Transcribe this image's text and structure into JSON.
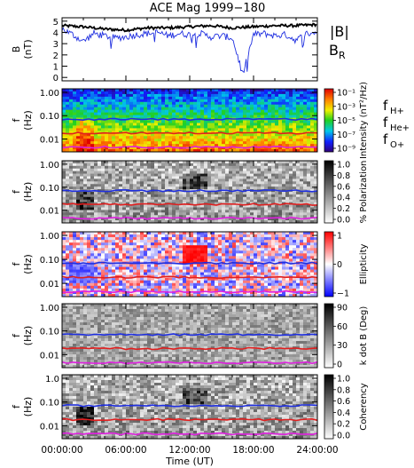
{
  "title": "ACE Mag 1999−180",
  "colors": {
    "black": "#000000",
    "blue": "#1f2fe0",
    "red": "#e01f1f",
    "magenta": "#e020e0"
  },
  "chart_data": [
    {
      "type": "line",
      "panel": "field",
      "ylabel_lines": [
        "B",
        "(nT)"
      ],
      "ylim": [
        -0.3,
        5.3
      ],
      "yticks": [
        "0",
        "1",
        "2",
        "3",
        "4",
        "5"
      ],
      "legend": [
        {
          "label": "|B|",
          "color": "#000000"
        },
        {
          "label": "B",
          "sub": "R",
          "color": "#1f2fe0"
        }
      ],
      "series": [
        {
          "name": "|B|",
          "color": "#000000",
          "x": [
            0,
            2,
            4,
            6,
            8,
            10,
            12,
            14,
            16,
            18,
            20,
            22,
            24
          ],
          "y": [
            4.6,
            4.5,
            4.3,
            4.2,
            4.4,
            4.4,
            4.5,
            4.6,
            4.4,
            4.5,
            4.6,
            4.6,
            4.7
          ]
        },
        {
          "name": "B_R",
          "color": "#1f2fe0",
          "x": [
            0,
            1,
            2,
            3,
            4,
            5,
            6,
            7,
            8,
            9,
            10,
            11,
            12,
            13,
            14,
            15,
            16,
            17,
            18,
            19,
            20,
            21,
            22,
            23,
            24
          ],
          "y": [
            4.3,
            3.8,
            3.2,
            3.9,
            3.7,
            3.5,
            3.6,
            3.8,
            3.9,
            4.0,
            3.7,
            3.9,
            3.8,
            3.9,
            3.6,
            3.7,
            3.5,
            0.3,
            3.8,
            3.9,
            3.7,
            3.8,
            3.3,
            3.9,
            4.0
          ]
        }
      ]
    },
    {
      "type": "heatmap",
      "panel": "intensity",
      "ylabel_lines": [
        "f",
        "(Hz)"
      ],
      "yticks": [
        "1.00",
        "0.10",
        "0.01"
      ],
      "colorbar": {
        "label": "Intensity (nT²/Hz)",
        "ticks": [
          "10⁻¹",
          "10⁻³",
          "10⁻⁵",
          "10⁻⁷",
          "10⁻⁹"
        ]
      },
      "legend": [
        {
          "label": "f",
          "sub": "H+",
          "color": "#1f2fe0"
        },
        {
          "label": "f",
          "sub": "He+",
          "color": "#e01f1f"
        },
        {
          "label": "f",
          "sub": "O+",
          "color": "#e020e0"
        }
      ]
    },
    {
      "type": "heatmap",
      "panel": "polarization",
      "ylabel_lines": [
        "f",
        "(Hz)"
      ],
      "yticks": [
        "1.00",
        "0.10",
        "0.01"
      ],
      "colorbar": {
        "label": "% Polarization",
        "ticks": [
          "1.0",
          "0.8",
          "0.6",
          "0.4",
          "0.2",
          "0.0"
        ]
      }
    },
    {
      "type": "heatmap",
      "panel": "ellipticity",
      "ylabel_lines": [
        "f",
        "(Hz)"
      ],
      "yticks": [
        "1.00",
        "0.10",
        "0.01"
      ],
      "colorbar": {
        "label": "Ellipticity",
        "ticks": [
          "1",
          "0",
          "−1"
        ]
      }
    },
    {
      "type": "heatmap",
      "panel": "kdotb",
      "ylabel_lines": [
        "f",
        "(Hz)"
      ],
      "yticks": [
        "1.00",
        "0.10",
        "0.01"
      ],
      "colorbar": {
        "label": "k dot B (Deg)",
        "ticks": [
          "90",
          "60",
          "30",
          "0"
        ]
      }
    },
    {
      "type": "heatmap",
      "panel": "coherency",
      "ylabel_lines": [
        "f",
        "(Hz)"
      ],
      "yticks": [
        "1.0",
        "0.10",
        "0.01"
      ],
      "colorbar": {
        "label": "Coherency",
        "ticks": [
          "1.0",
          "0.8",
          "0.6",
          "0.4",
          "0.2",
          "0.0"
        ]
      }
    }
  ],
  "x_axis": {
    "label": "Time (UT)",
    "ticks": [
      "00:00:00",
      "06:00:00",
      "12:00:00",
      "18:00:00",
      "24:00:00"
    ],
    "range_hours": [
      0,
      24
    ]
  },
  "gyrofrequency_lines_hz": {
    "H+": 0.07,
    "He+": 0.018,
    "O+": 0.0045
  }
}
